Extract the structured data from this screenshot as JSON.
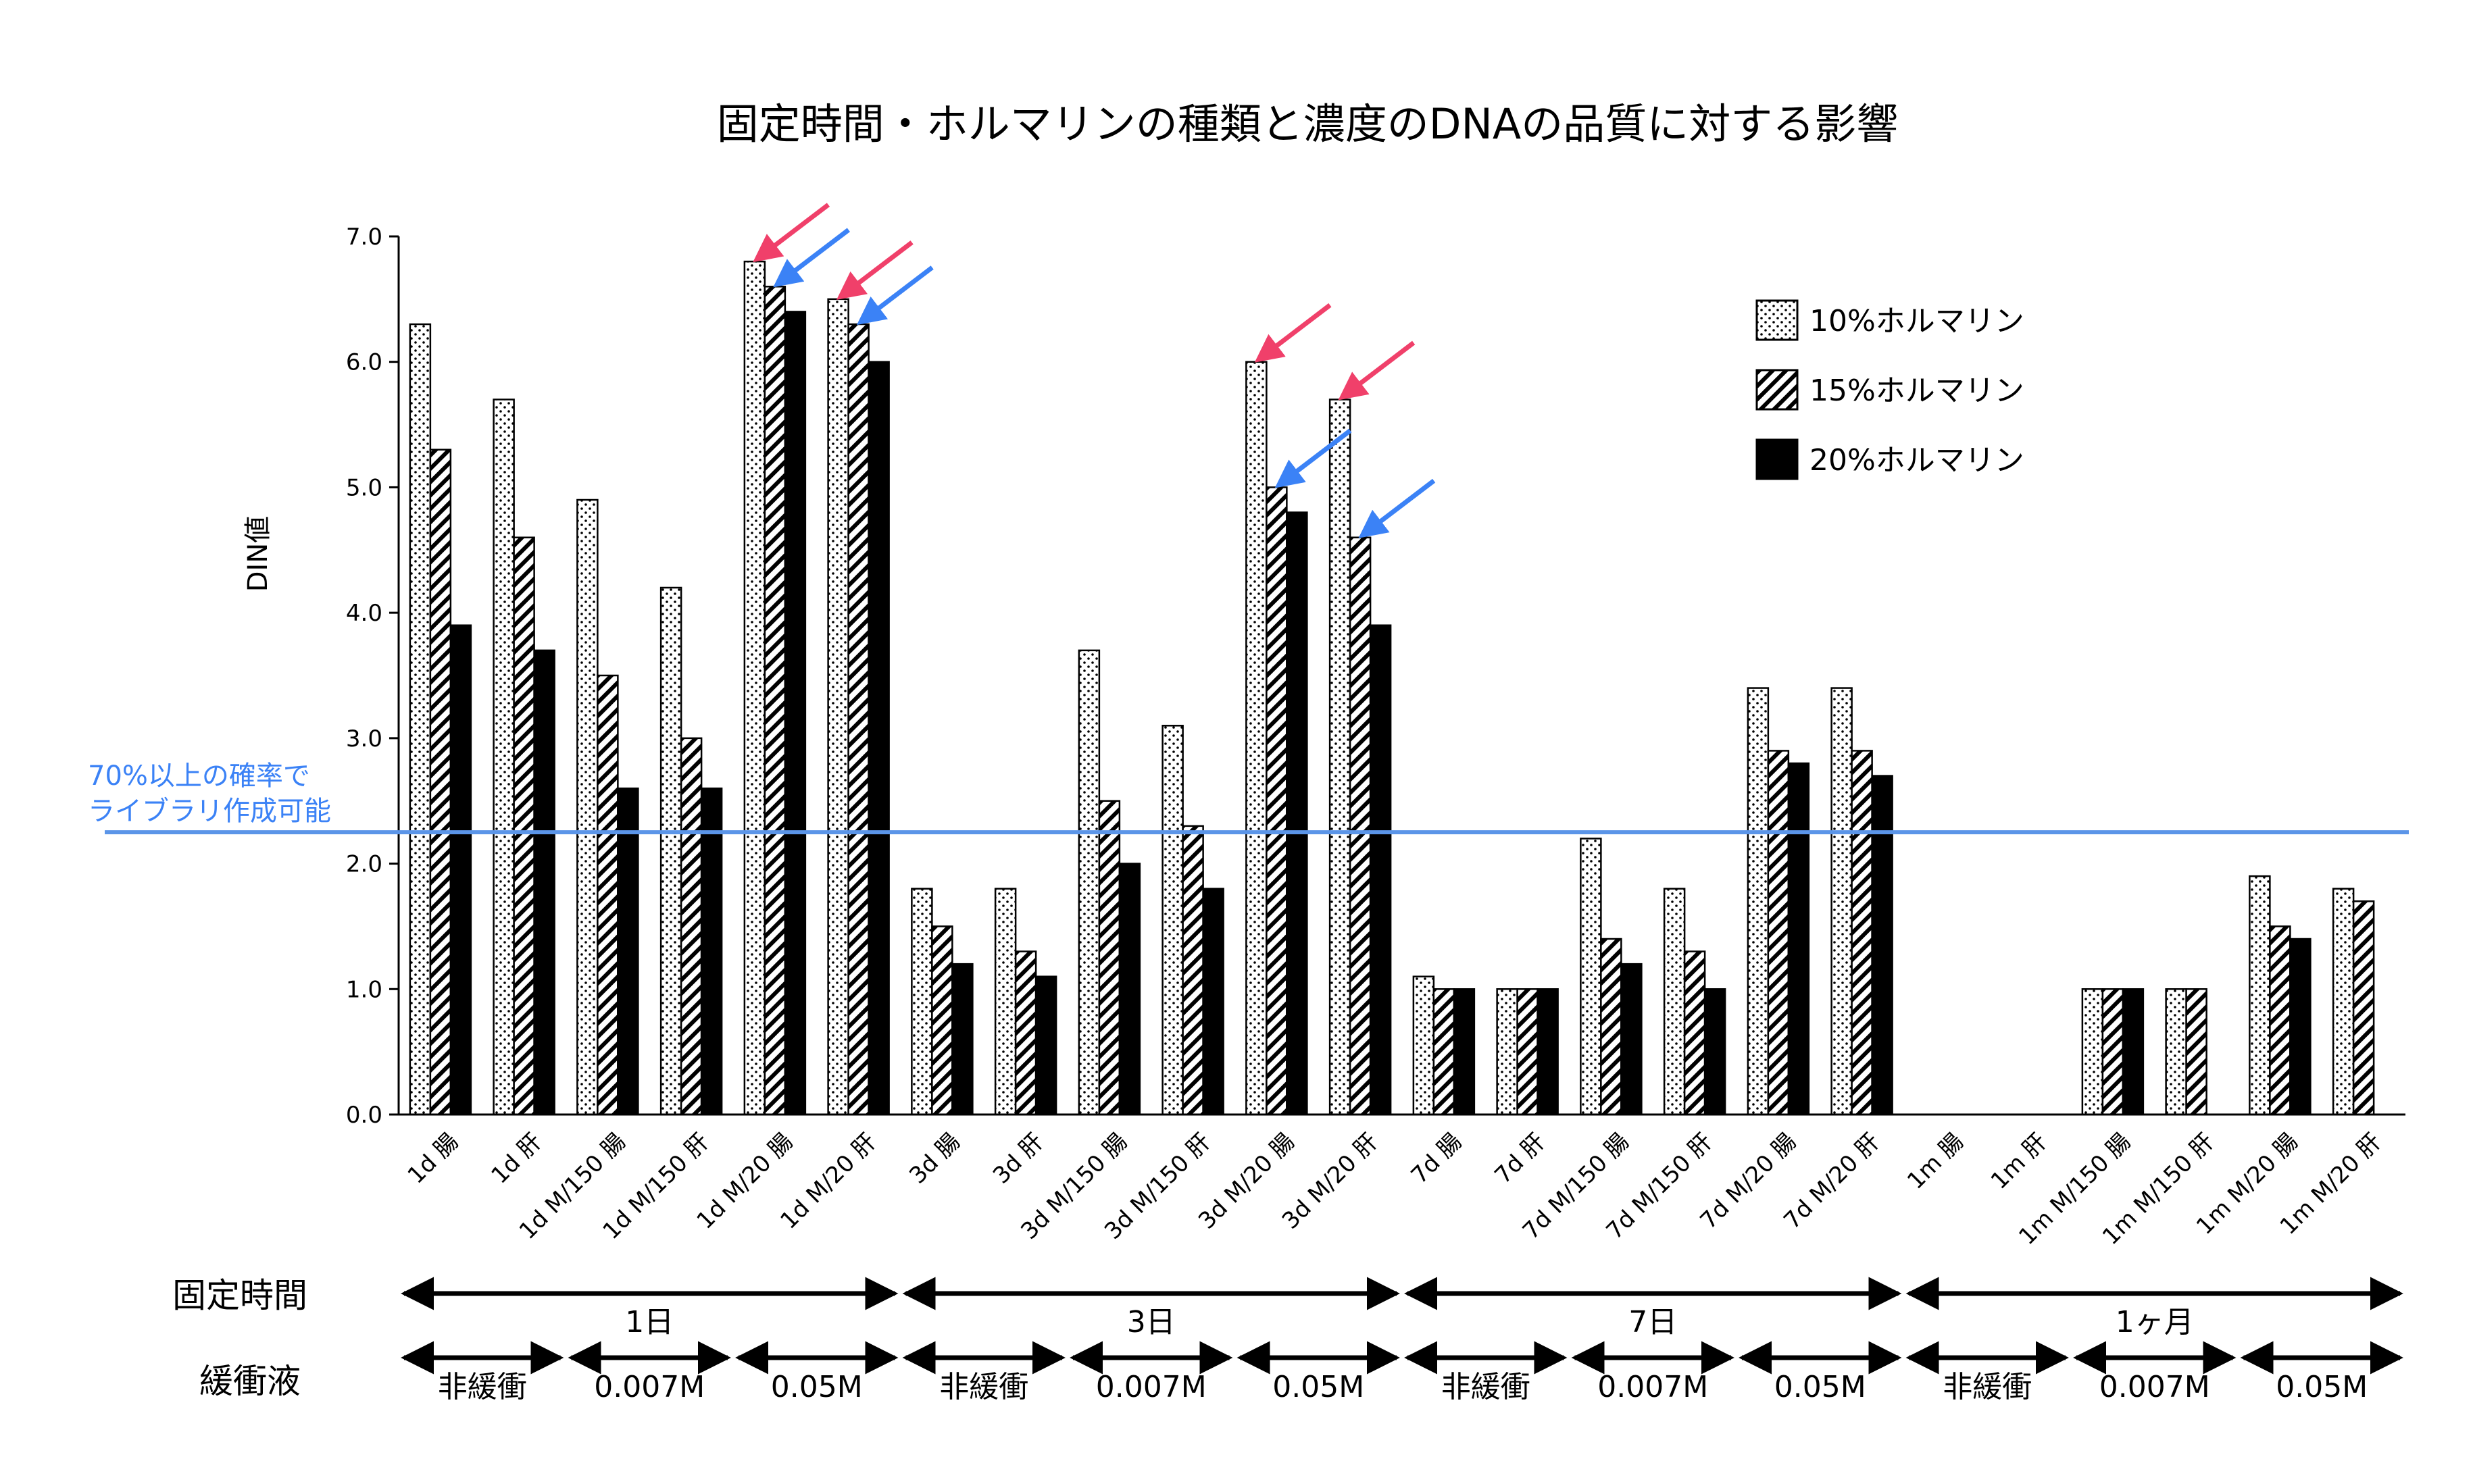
{
  "colors": {
    "threshold_line": "#5b95e8",
    "pink_arrow": "#f0406a",
    "blue_arrow": "#3b82f6",
    "bar_border": "#000000",
    "bar_solid": "#000000"
  },
  "chart_data": {
    "type": "bar",
    "title": "固定時間・ホルマリンの種類と濃度のDNAの品質に対する影響",
    "xlabel": "",
    "ylabel": "DIN値",
    "ylim": [
      0,
      7
    ],
    "yticks": [
      "0.0",
      "1.0",
      "2.0",
      "3.0",
      "4.0",
      "5.0",
      "6.0",
      "7.0"
    ],
    "grid": false,
    "legend_position": "top-right",
    "categories": [
      "1d 腸",
      "1d 肝",
      "1d M/150 腸",
      "1d M/150 肝",
      "1d M/20 腸",
      "1d M/20 肝",
      "3d 腸",
      "3d 肝",
      "3d M/150 腸",
      "3d M/150 肝",
      "3d M/20 腸",
      "3d M/20 肝",
      "7d 腸",
      "7d 肝",
      "7d M/150 腸",
      "7d M/150 肝",
      "7d M/20 腸",
      "7d M/20 肝",
      "1m 腸",
      "1m 肝",
      "1m M/150 腸",
      "1m M/150 肝",
      "1m M/20 腸",
      "1m M/20 肝"
    ],
    "series": [
      {
        "name": "10%ホルマリン",
        "pattern": "dots",
        "values": [
          6.3,
          5.7,
          4.9,
          4.2,
          6.8,
          6.5,
          1.8,
          1.8,
          3.7,
          3.1,
          6.0,
          5.7,
          1.1,
          1.0,
          2.2,
          1.8,
          3.4,
          3.4,
          null,
          null,
          1.0,
          1.0,
          1.9,
          1.8
        ]
      },
      {
        "name": "15%ホルマリン",
        "pattern": "hatch",
        "values": [
          5.3,
          4.6,
          3.5,
          3.0,
          6.6,
          6.3,
          1.5,
          1.3,
          2.5,
          2.3,
          5.0,
          4.6,
          1.0,
          1.0,
          1.4,
          1.3,
          2.9,
          2.9,
          null,
          null,
          1.0,
          1.0,
          1.5,
          1.7
        ]
      },
      {
        "name": "20%ホルマリン",
        "pattern": "solid",
        "values": [
          3.9,
          3.7,
          2.6,
          2.6,
          6.4,
          6.0,
          1.2,
          1.1,
          2.0,
          1.8,
          4.8,
          3.9,
          1.0,
          1.0,
          1.2,
          1.0,
          2.8,
          2.7,
          null,
          null,
          1.0,
          null,
          1.4,
          null
        ]
      }
    ],
    "threshold": {
      "value": 2.25,
      "label_line1": "70%以上の確率で",
      "label_line2": "ライブラリ作成可能"
    },
    "arrows": [
      {
        "category_index": 4,
        "series_index": 0,
        "color": "pink"
      },
      {
        "category_index": 4,
        "series_index": 1,
        "color": "blue"
      },
      {
        "category_index": 5,
        "series_index": 0,
        "color": "pink"
      },
      {
        "category_index": 5,
        "series_index": 1,
        "color": "blue"
      },
      {
        "category_index": 10,
        "series_index": 0,
        "color": "pink"
      },
      {
        "category_index": 10,
        "series_index": 1,
        "color": "blue"
      },
      {
        "category_index": 11,
        "series_index": 0,
        "color": "pink"
      },
      {
        "category_index": 11,
        "series_index": 1,
        "color": "blue"
      }
    ]
  },
  "bottom_axes": {
    "fixation_label": "固定時間",
    "fixation_segments": [
      {
        "label": "1日",
        "from": 0,
        "to": 6
      },
      {
        "label": "3日",
        "from": 6,
        "to": 12
      },
      {
        "label": "7日",
        "from": 12,
        "to": 18
      },
      {
        "label": "1ヶ月",
        "from": 18,
        "to": 24
      }
    ],
    "buffer_label": "緩衝液",
    "buffer_segments": [
      {
        "label": "非緩衝",
        "from": 0,
        "to": 2
      },
      {
        "label": "0.007M",
        "from": 2,
        "to": 4
      },
      {
        "label": "0.05M",
        "from": 4,
        "to": 6
      },
      {
        "label": "非緩衝",
        "from": 6,
        "to": 8
      },
      {
        "label": "0.007M",
        "from": 8,
        "to": 10
      },
      {
        "label": "0.05M",
        "from": 10,
        "to": 12
      },
      {
        "label": "非緩衝",
        "from": 12,
        "to": 14
      },
      {
        "label": "0.007M",
        "from": 14,
        "to": 16
      },
      {
        "label": "0.05M",
        "from": 16,
        "to": 18
      },
      {
        "label": "非緩衝",
        "from": 18,
        "to": 20
      },
      {
        "label": "0.007M",
        "from": 20,
        "to": 22
      },
      {
        "label": "0.05M",
        "from": 22,
        "to": 24
      }
    ]
  }
}
